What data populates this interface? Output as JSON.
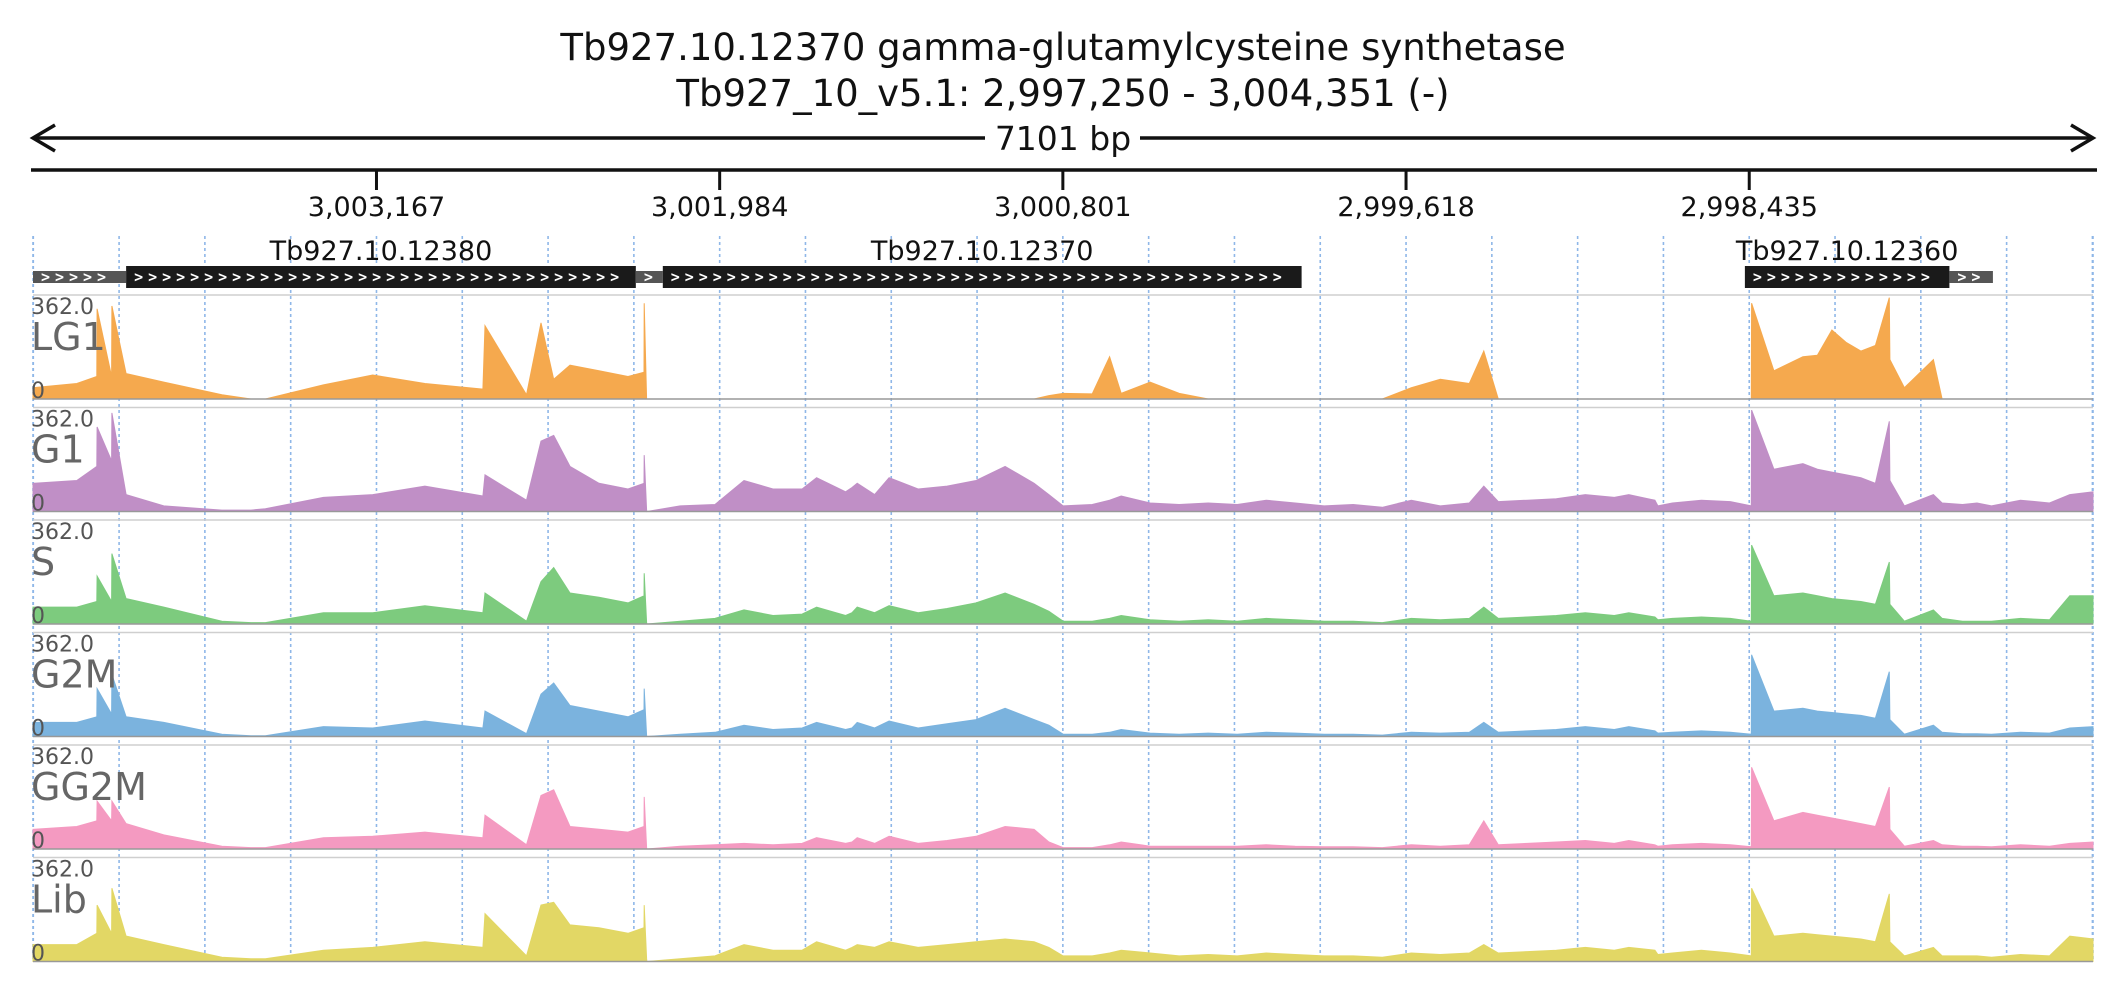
{
  "title": {
    "line1": "Tb927.10.12370  gamma-glutamylcysteine synthetase",
    "line2": "Tb927_10_v5.1: 2,997,250 - 3,004,351 (-)",
    "span_label": "7101 bp"
  },
  "chart_data": {
    "type": "area",
    "region": {
      "chrom": "Tb927_10_v5.1",
      "start": 2997250,
      "end": 3004351,
      "strand": "-"
    },
    "x_axis": {
      "reversed": true,
      "tick_values": [
        3003167,
        3001984,
        3000801,
        2999618,
        2998435
      ],
      "tick_labels": [
        "3,003,167",
        "3,001,984",
        "3,000,801",
        "2,999,618",
        "2,998,435"
      ]
    },
    "grid": true,
    "genes": [
      {
        "label": "",
        "start": 3004030,
        "end": 3004351,
        "coding": false
      },
      {
        "label": "Tb927.10.12380",
        "start": 3002273,
        "end": 3004030,
        "coding": true
      },
      {
        "label": "",
        "start": 3002180,
        "end": 3002273,
        "coding": false
      },
      {
        "label": "Tb927.10.12370",
        "start": 2999978,
        "end": 3002180,
        "coding": true
      },
      {
        "label": "Tb927.10.12360",
        "start": 2997745,
        "end": 2998450,
        "coding": true
      },
      {
        "label": "",
        "start": 2997595,
        "end": 2997745,
        "coding": false
      }
    ],
    "ylim": [
      0,
      362
    ],
    "y_max_label": "362.0",
    "y_min_label": "0",
    "x_sample_positions": [
      3004351,
      3004200,
      3004131,
      3004130,
      3004080,
      3004079,
      3004030,
      3003900,
      3003700,
      3003600,
      3003550,
      3003350,
      3003180,
      3003000,
      3002800,
      3002793,
      3002650,
      3002600,
      3002556,
      3002500,
      3002400,
      3002300,
      3002245,
      3002244,
      3002236,
      3002235,
      3002120,
      3002000,
      3001900,
      3001800,
      3001700,
      3001650,
      3001550,
      3001528,
      3001510,
      3001450,
      3001400,
      3001300,
      3001200,
      3001100,
      3001000,
      3000900,
      3000849,
      3000800,
      3000700,
      3000640,
      3000600,
      3000500,
      3000400,
      3000300,
      3000200,
      3000100,
      3000000,
      2999900,
      2999800,
      2999700,
      2999600,
      2999500,
      2999400,
      2999350,
      2999300,
      2999200,
      2999100,
      2999000,
      2998900,
      2998850,
      2998760,
      2998750,
      2998700,
      2998600,
      2998500,
      2998428,
      2998427,
      2998350,
      2998250,
      2998200,
      2998150,
      2998100,
      2998050,
      2998000,
      2997952,
      2997950,
      2997900,
      2997800,
      2997770,
      2997700,
      2997650,
      2997600,
      2997500,
      2997400,
      2997330,
      2997250
    ],
    "series": [
      {
        "name": "LG1",
        "color": "#F5A94E",
        "values": [
          40,
          55,
          80,
          320,
          80,
          330,
          90,
          60,
          15,
          0,
          0,
          50,
          85,
          55,
          35,
          260,
          15,
          270,
          70,
          120,
          100,
          80,
          95,
          340,
          0,
          0,
          0,
          0,
          0,
          0,
          0,
          0,
          0,
          0,
          0,
          0,
          0,
          0,
          0,
          0,
          0,
          0,
          12,
          20,
          18,
          150,
          20,
          60,
          20,
          0,
          0,
          0,
          0,
          0,
          0,
          0,
          40,
          70,
          55,
          170,
          0,
          0,
          0,
          0,
          0,
          0,
          0,
          0,
          0,
          0,
          0,
          0,
          340,
          100,
          150,
          155,
          245,
          200,
          170,
          190,
          360,
          140,
          40,
          140,
          0,
          0,
          0,
          0,
          0,
          0,
          0,
          0
        ]
      },
      {
        "name": "G1",
        "color": "#C08FC6",
        "values": [
          100,
          110,
          160,
          300,
          180,
          350,
          60,
          20,
          5,
          5,
          10,
          50,
          60,
          90,
          55,
          130,
          40,
          250,
          270,
          160,
          100,
          80,
          100,
          200,
          5,
          0,
          20,
          25,
          110,
          80,
          80,
          120,
          70,
          85,
          100,
          60,
          120,
          80,
          90,
          110,
          160,
          100,
          60,
          20,
          25,
          40,
          55,
          30,
          25,
          30,
          25,
          40,
          30,
          20,
          25,
          15,
          40,
          20,
          30,
          90,
          35,
          40,
          45,
          60,
          50,
          60,
          40,
          20,
          30,
          40,
          35,
          20,
          360,
          150,
          170,
          150,
          140,
          130,
          120,
          100,
          320,
          110,
          20,
          60,
          30,
          25,
          30,
          20,
          40,
          30,
          60,
          70
        ]
      },
      {
        "name": "S",
        "color": "#7DCB7E",
        "values": [
          60,
          60,
          80,
          170,
          80,
          250,
          90,
          60,
          10,
          5,
          5,
          40,
          40,
          65,
          40,
          110,
          10,
          150,
          200,
          110,
          95,
          75,
          100,
          180,
          5,
          0,
          10,
          20,
          50,
          30,
          35,
          60,
          30,
          40,
          60,
          40,
          65,
          40,
          55,
          75,
          110,
          70,
          45,
          10,
          10,
          20,
          30,
          15,
          10,
          15,
          10,
          20,
          15,
          10,
          10,
          5,
          20,
          15,
          20,
          60,
          20,
          25,
          30,
          40,
          30,
          40,
          25,
          15,
          20,
          25,
          20,
          10,
          280,
          100,
          110,
          100,
          90,
          85,
          80,
          70,
          220,
          70,
          10,
          50,
          20,
          10,
          10,
          10,
          20,
          15,
          100,
          100
        ]
      },
      {
        "name": "G2M",
        "color": "#7BB3DE",
        "values": [
          50,
          50,
          70,
          170,
          80,
          220,
          70,
          50,
          8,
          3,
          3,
          35,
          30,
          55,
          30,
          90,
          10,
          150,
          190,
          110,
          90,
          70,
          95,
          170,
          3,
          0,
          8,
          15,
          40,
          25,
          30,
          50,
          25,
          30,
          50,
          30,
          55,
          30,
          45,
          60,
          100,
          60,
          40,
          8,
          8,
          15,
          25,
          12,
          8,
          12,
          8,
          15,
          12,
          8,
          8,
          5,
          15,
          12,
          15,
          50,
          15,
          20,
          25,
          35,
          25,
          35,
          20,
          12,
          15,
          20,
          15,
          8,
          290,
          90,
          100,
          90,
          85,
          80,
          75,
          65,
          230,
          60,
          8,
          40,
          15,
          10,
          10,
          8,
          15,
          12,
          30,
          35
        ]
      },
      {
        "name": "GG2M",
        "color": "#F49AC1",
        "values": [
          70,
          80,
          100,
          170,
          100,
          170,
          90,
          50,
          10,
          5,
          5,
          40,
          45,
          60,
          40,
          120,
          15,
          190,
          210,
          80,
          70,
          60,
          80,
          185,
          5,
          0,
          10,
          15,
          20,
          15,
          20,
          40,
          20,
          25,
          40,
          20,
          45,
          20,
          30,
          45,
          80,
          70,
          25,
          5,
          5,
          15,
          25,
          10,
          10,
          10,
          10,
          15,
          10,
          8,
          8,
          5,
          15,
          10,
          15,
          100,
          15,
          20,
          25,
          30,
          20,
          30,
          15,
          10,
          15,
          20,
          15,
          8,
          290,
          100,
          130,
          120,
          110,
          100,
          90,
          80,
          220,
          70,
          10,
          30,
          15,
          10,
          10,
          8,
          15,
          10,
          20,
          25
        ]
      },
      {
        "name": "Lib",
        "color": "#E2D765",
        "values": [
          60,
          60,
          100,
          200,
          100,
          260,
          90,
          60,
          15,
          10,
          10,
          40,
          50,
          70,
          50,
          170,
          20,
          200,
          210,
          130,
          120,
          100,
          120,
          200,
          10,
          0,
          10,
          20,
          60,
          40,
          40,
          70,
          40,
          50,
          60,
          50,
          70,
          50,
          60,
          70,
          80,
          70,
          50,
          20,
          20,
          30,
          40,
          30,
          20,
          25,
          20,
          30,
          25,
          20,
          20,
          15,
          30,
          25,
          30,
          60,
          30,
          35,
          40,
          50,
          40,
          50,
          40,
          25,
          30,
          40,
          30,
          20,
          260,
          90,
          100,
          95,
          90,
          85,
          80,
          70,
          240,
          70,
          20,
          50,
          20,
          20,
          20,
          15,
          25,
          20,
          90,
          80
        ]
      }
    ]
  }
}
